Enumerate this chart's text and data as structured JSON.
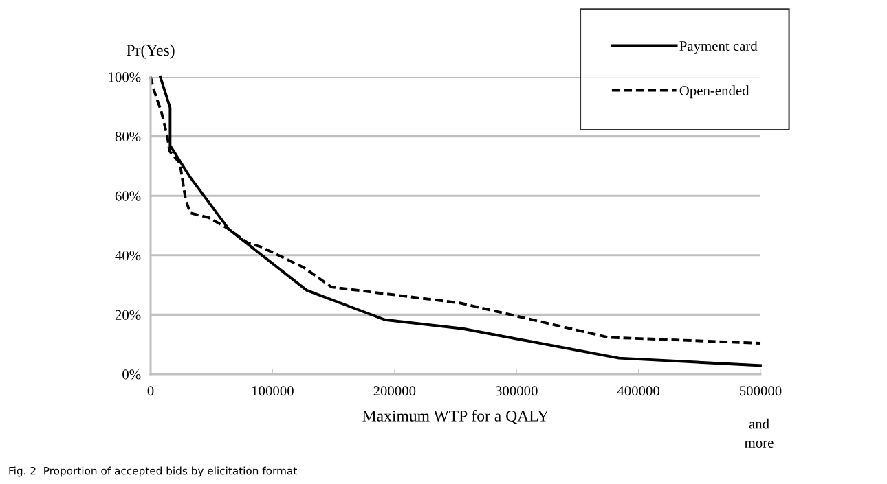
{
  "chart_data": {
    "type": "line",
    "xlabel": "Maximum WTP for a QALY",
    "ylabel": "Pr(Yes)",
    "xlim": [
      0,
      500000
    ],
    "xticks": [
      0,
      100000,
      200000,
      300000,
      400000,
      500000
    ],
    "ylim": [
      0,
      100
    ],
    "yticks": [
      {
        "value": 0,
        "label": "0%"
      },
      {
        "value": 20,
        "label": "20%"
      },
      {
        "value": 40,
        "label": "40%"
      },
      {
        "value": 60,
        "label": "60%"
      },
      {
        "value": 80,
        "label": "80%"
      },
      {
        "value": 100,
        "label": "100%"
      }
    ],
    "grid": "y",
    "legend": "top right",
    "marker": "none",
    "series": [
      {
        "name": "Payment card",
        "color": "#000000",
        "line_style": "solid",
        "x": [
          8000,
          16000,
          16000,
          32000,
          64000,
          128000,
          192000,
          256000,
          384000,
          500000
        ],
        "values": [
          100,
          89.6,
          76.9,
          66.5,
          48.8,
          28.2,
          18.3,
          15.3,
          5.4,
          2.9
        ]
      },
      {
        "name": "Open-ended",
        "color": "#000000",
        "line_style": "dashed",
        "x": [
          0,
          2400,
          9000,
          13700,
          15600,
          24000,
          28700,
          32500,
          47500,
          62500,
          79400,
          90600,
          125500,
          148300,
          254200,
          374900,
          500000
        ],
        "values": [
          100,
          96,
          88,
          80,
          75,
          71,
          58.8,
          54.2,
          52.7,
          49.2,
          44.2,
          42.8,
          35.9,
          29.3,
          23.9,
          12.4,
          10.4
        ]
      }
    ],
    "annotations": [
      "and\nmore",
      "Fig. 2  Proportion of accepted bids by elicitation format"
    ]
  }
}
